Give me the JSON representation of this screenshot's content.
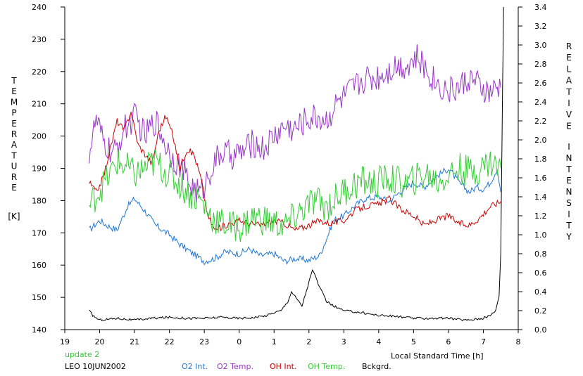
{
  "chart_data": {
    "type": "line",
    "title": "",
    "xlabel": "Local Standard Time [h]",
    "ylabel_left": "TEMPERATURE [K]",
    "ylabel_right": "RELATIVE INTENSITY",
    "ylabel_left_letters": [
      "T",
      "E",
      "M",
      "P",
      "E",
      "R",
      "A",
      "T",
      "U",
      "R",
      "E"
    ],
    "ylabel_left_unit": "[K]",
    "ylabel_right_word1": [
      "R",
      "E",
      "L",
      "A",
      "T",
      "I",
      "V",
      "E"
    ],
    "ylabel_right_word2": [
      "I",
      "N",
      "T",
      "E",
      "N",
      "S",
      "I",
      "T",
      "Y"
    ],
    "x_range": [
      19,
      32
    ],
    "x_ticks": [
      19,
      20,
      21,
      22,
      23,
      24,
      25,
      26,
      27,
      28,
      29,
      30,
      31,
      32
    ],
    "x_tick_labels": [
      "19",
      "20",
      "21",
      "22",
      "23",
      "0",
      "1",
      "2",
      "3",
      "4",
      "5",
      "6",
      "7",
      "8"
    ],
    "ylim_left": [
      140,
      240
    ],
    "y_left_ticks": [
      140,
      150,
      160,
      170,
      180,
      190,
      200,
      210,
      220,
      230,
      240
    ],
    "ylim_right": [
      0.0,
      3.4
    ],
    "y_right_ticks": [
      "0.0",
      "0.2",
      "0.4",
      "0.6",
      "0.8",
      "1.0",
      "1.2",
      "1.4",
      "1.6",
      "1.8",
      "2.0",
      "2.2",
      "2.4",
      "2.6",
      "2.8",
      "3.0",
      "3.2",
      "3.4"
    ],
    "update_note": "update 2",
    "station_date": "LEO 10JUN2002",
    "series": [
      {
        "name": "O2 Int.",
        "axis": "right",
        "color": "#1f77d4",
        "x": [
          19.7,
          20.0,
          20.2,
          20.5,
          20.8,
          21.0,
          21.3,
          21.6,
          22.0,
          22.3,
          22.6,
          23.0,
          23.3,
          23.6,
          24.0,
          24.3,
          24.6,
          25.0,
          25.3,
          25.6,
          26.0,
          26.3,
          26.5,
          26.7,
          27.0,
          27.3,
          27.6,
          28.0,
          28.3,
          28.6,
          29.0,
          29.3,
          29.6,
          30.0,
          30.3,
          30.6,
          30.8,
          31.0,
          31.2,
          31.4,
          31.5
        ],
        "y": [
          1.05,
          1.15,
          1.1,
          1.05,
          1.3,
          1.38,
          1.25,
          1.1,
          1.0,
          0.9,
          0.82,
          0.72,
          0.75,
          0.82,
          0.8,
          0.85,
          0.78,
          0.8,
          0.72,
          0.75,
          0.73,
          0.78,
          0.95,
          1.15,
          1.2,
          1.3,
          1.38,
          1.4,
          1.35,
          1.45,
          1.55,
          1.5,
          1.6,
          1.7,
          1.55,
          1.45,
          1.5,
          1.48,
          1.55,
          1.7,
          1.45
        ]
      },
      {
        "name": "O2 Temp.",
        "axis": "left",
        "color": "#9933cc",
        "x": [
          19.7,
          19.9,
          20.1,
          20.4,
          20.7,
          21.0,
          21.3,
          21.6,
          22.0,
          22.3,
          22.6,
          22.9,
          23.2,
          23.5,
          23.8,
          24.1,
          24.4,
          24.7,
          25.0,
          25.3,
          25.6,
          25.9,
          26.2,
          26.5,
          26.8,
          27.0,
          27.3,
          27.6,
          27.9,
          28.2,
          28.5,
          28.8,
          29.1,
          29.4,
          29.7,
          30.0,
          30.3,
          30.6,
          30.9,
          31.2,
          31.5
        ],
        "y": [
          195,
          205,
          198,
          194,
          202,
          206,
          200,
          205,
          195,
          191,
          185,
          182,
          190,
          195,
          194,
          195,
          198,
          196,
          200,
          203,
          202,
          205,
          206,
          205,
          210,
          212,
          215,
          218,
          218,
          220,
          222,
          222,
          224,
          220,
          216,
          214,
          215,
          218,
          215,
          213,
          215
        ]
      },
      {
        "name": "OH Int.",
        "axis": "right",
        "color": "#cc0000",
        "x": [
          19.7,
          19.9,
          20.1,
          20.3,
          20.5,
          20.7,
          20.9,
          21.1,
          21.3,
          21.5,
          21.7,
          21.9,
          22.1,
          22.3,
          22.5,
          22.7,
          22.9,
          23.1,
          23.3,
          23.6,
          24.0,
          24.3,
          24.6,
          25.0,
          25.3,
          25.6,
          26.0,
          26.3,
          26.6,
          27.0,
          27.3,
          27.6,
          28.0,
          28.3,
          28.6,
          29.0,
          29.3,
          29.6,
          30.0,
          30.3,
          30.6,
          30.9,
          31.2,
          31.5
        ],
        "y": [
          1.55,
          1.45,
          1.6,
          1.9,
          2.2,
          2.1,
          2.3,
          1.95,
          1.85,
          1.75,
          2.1,
          2.25,
          2.05,
          1.7,
          1.9,
          1.85,
          1.6,
          1.2,
          1.05,
          1.1,
          1.15,
          1.12,
          1.1,
          1.15,
          1.12,
          1.05,
          1.1,
          1.15,
          1.12,
          1.15,
          1.25,
          1.3,
          1.32,
          1.38,
          1.28,
          1.2,
          1.1,
          1.15,
          1.2,
          1.12,
          1.1,
          1.18,
          1.3,
          1.35
        ]
      },
      {
        "name": "OH Temp.",
        "axis": "left",
        "color": "#33cc33",
        "x": [
          19.7,
          19.9,
          20.1,
          20.3,
          20.5,
          20.8,
          21.0,
          21.3,
          21.6,
          22.0,
          22.3,
          22.6,
          22.9,
          23.2,
          23.5,
          23.8,
          24.1,
          24.4,
          24.7,
          25.0,
          25.3,
          25.6,
          25.9,
          26.2,
          26.5,
          26.8,
          27.0,
          27.3,
          27.6,
          27.9,
          28.2,
          28.5,
          28.8,
          29.1,
          29.4,
          29.7,
          30.0,
          30.3,
          30.6,
          30.9,
          31.2,
          31.5
        ],
        "y": [
          178,
          182,
          185,
          188,
          192,
          190,
          188,
          190,
          192,
          188,
          185,
          182,
          180,
          175,
          173,
          172,
          172,
          175,
          174,
          173,
          172,
          175,
          178,
          180,
          178,
          181,
          183,
          185,
          186,
          185,
          187,
          186,
          185,
          187,
          188,
          186,
          188,
          190,
          189,
          190,
          192,
          190
        ]
      },
      {
        "name": "Bckgrd.",
        "axis": "right",
        "color": "#000000",
        "x": [
          19.7,
          19.8,
          20.0,
          20.5,
          21.0,
          21.5,
          22.0,
          22.5,
          23.0,
          23.5,
          24.0,
          24.5,
          24.8,
          25.0,
          25.2,
          25.4,
          25.5,
          25.6,
          25.7,
          25.8,
          26.0,
          26.1,
          26.2,
          26.3,
          26.5,
          26.7,
          27.0,
          27.5,
          28.0,
          28.5,
          29.0,
          29.5,
          30.0,
          30.5,
          31.0,
          31.2,
          31.35,
          31.45,
          31.5,
          31.52,
          31.55,
          31.58
        ],
        "y": [
          0.2,
          0.15,
          0.1,
          0.12,
          0.1,
          0.12,
          0.13,
          0.12,
          0.12,
          0.13,
          0.12,
          0.13,
          0.15,
          0.18,
          0.2,
          0.3,
          0.4,
          0.35,
          0.3,
          0.25,
          0.5,
          0.63,
          0.55,
          0.45,
          0.3,
          0.25,
          0.2,
          0.18,
          0.15,
          0.14,
          0.12,
          0.12,
          0.12,
          0.1,
          0.12,
          0.15,
          0.2,
          0.35,
          0.8,
          1.5,
          2.5,
          3.4
        ]
      }
    ]
  }
}
